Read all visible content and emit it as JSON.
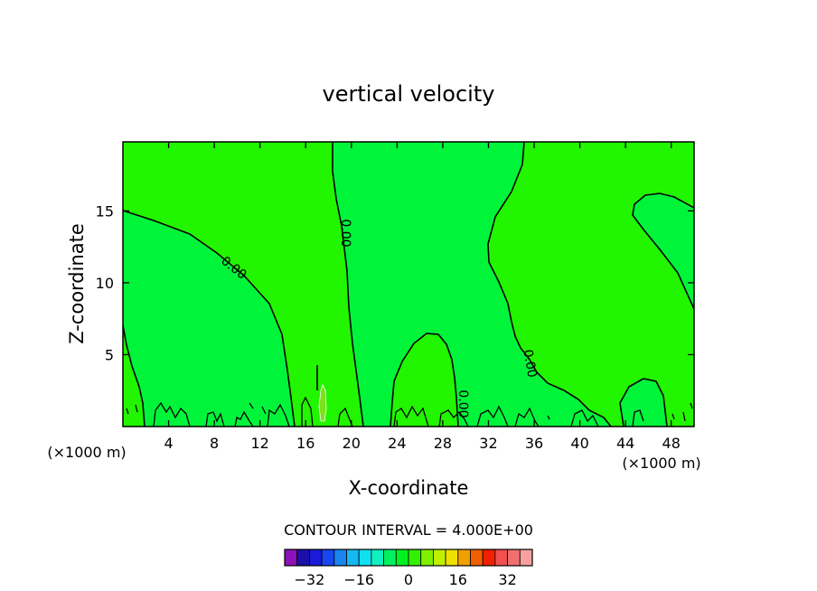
{
  "chart_data": {
    "type": "heatmap",
    "title": "vertical velocity",
    "xlabel": "X-coordinate",
    "ylabel": "Z-coordinate",
    "x_unit": "(×1000 m)",
    "y_unit": "",
    "xlim": [
      0,
      50
    ],
    "ylim": [
      0,
      19.8
    ],
    "x_ticks": [
      "4",
      "8",
      "12",
      "16",
      "20",
      "24",
      "28",
      "32",
      "36",
      "40",
      "44",
      "48"
    ],
    "x_tick_values": [
      4,
      8,
      12,
      16,
      20,
      24,
      28,
      32,
      36,
      40,
      44,
      48
    ],
    "y_ticks": [
      "5",
      "10",
      "15"
    ],
    "y_tick_values": [
      5,
      10,
      15
    ],
    "contour_label": "0.00",
    "contour_label_count": 4,
    "contour_interval_text": "CONTOUR INTERVAL = 4.000E+00",
    "contour_interval": 4.0,
    "colorbar": {
      "tick_labels": [
        "−32",
        "−16",
        "0",
        "16",
        "32"
      ],
      "tick_values": [
        -32,
        -16,
        0,
        16,
        32
      ],
      "colors": [
        "#8a12b8",
        "#1c10a8",
        "#1a1ad8",
        "#1a46f0",
        "#1a84f0",
        "#16b8f0",
        "#10e0f0",
        "#10f0c0",
        "#00f060",
        "#00f020",
        "#30f000",
        "#80f000",
        "#c0f000",
        "#f0e000",
        "#f0a000",
        "#f06000",
        "#f02000",
        "#f05050",
        "#f07070",
        "#f8a0a0"
      ]
    },
    "fields": {
      "positive_color": "#22f500",
      "near_zero_color": "#00f53a"
    }
  }
}
